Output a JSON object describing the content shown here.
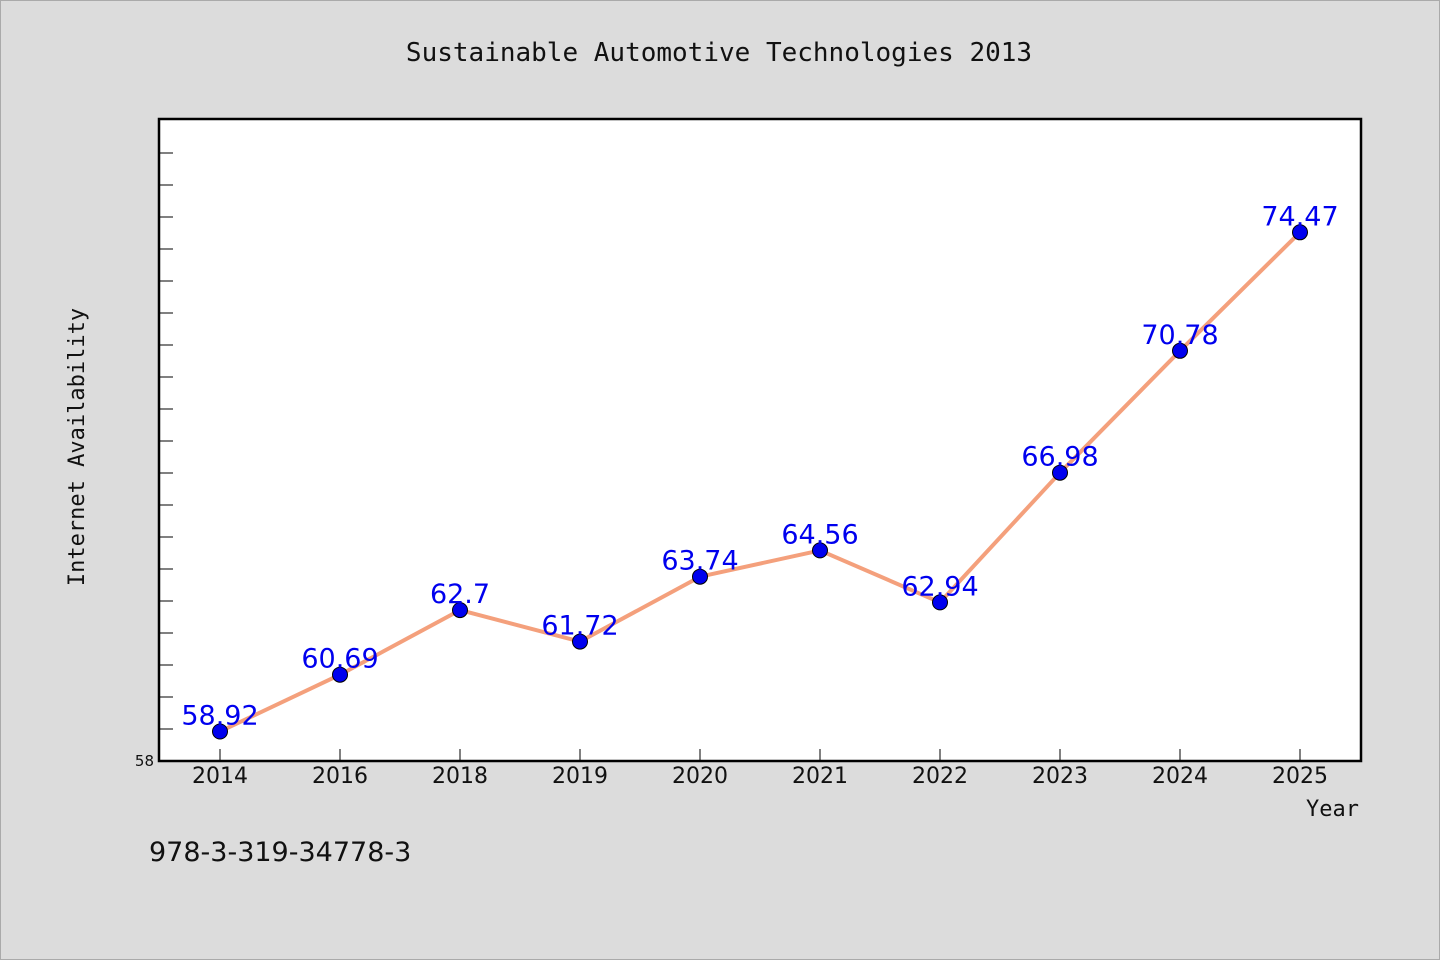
{
  "chart_data": {
    "type": "line",
    "title": "Sustainable Automotive Technologies 2013",
    "xlabel": "Year",
    "ylabel": "Internet Availability",
    "categories": [
      "2014",
      "2016",
      "2018",
      "2019",
      "2020",
      "2021",
      "2022",
      "2023",
      "2024",
      "2025"
    ],
    "series": [
      {
        "values": [
          58.92,
          60.69,
          62.7,
          61.72,
          63.74,
          64.56,
          62.94,
          66.98,
          70.78,
          74.47
        ]
      }
    ],
    "data_labels": [
      "58.92",
      "60.69",
      "62.7",
      "61.72",
      "63.74",
      "64.56",
      "62.94",
      "66.98",
      "70.78",
      "74.47"
    ],
    "ylim": [
      58,
      78
    ],
    "y_tick_label": "58",
    "grid": false,
    "line_color": "#f4a07c",
    "marker_color": "#0000ee",
    "label_color": "#0000ee",
    "plot_background": "#ffffff",
    "page_background": "#dcdcdc"
  },
  "footer_code": "978-3-319-34778-3"
}
